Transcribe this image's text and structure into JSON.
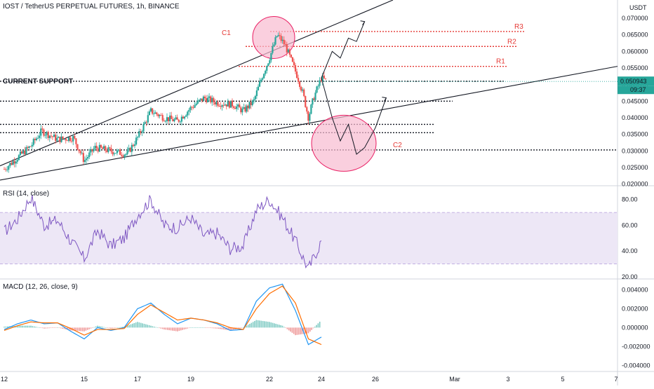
{
  "header": {
    "symbol": "IOST / TetherUS PERPETUAL FUTURES, 1h, BINANCE"
  },
  "colors": {
    "up": "#26a69a",
    "down": "#ef5350",
    "annotation_red": "#e53935",
    "rsi_line": "#7e57c2",
    "rsi_band": "#ede7f6",
    "macd_line": "#2196f3",
    "signal_line": "#ff6d00",
    "circle_fill": "#f8bbd0",
    "circle_stroke": "#e91e63"
  },
  "chart_data": [
    {
      "type": "candlestick",
      "panel": "price",
      "unit": "USDT",
      "ylim": [
        0.0195,
        0.0755
      ],
      "y_ticks": [
        "0.070000",
        "0.065000",
        "0.060000",
        "0.055000",
        "0.050000",
        "0.045000",
        "0.040000",
        "0.035000",
        "0.030000",
        "0.025000",
        "0.020000"
      ],
      "x_ticks": [
        "12",
        "15",
        "17",
        "19",
        "22",
        "24",
        "26",
        "Mar",
        "3",
        "5",
        "7"
      ],
      "last_price": "0.050943",
      "countdown": "09:37",
      "price_path": [
        [
          "12",
          0.0245
        ],
        [
          "13",
          0.0315
        ],
        [
          "13.4",
          0.036
        ],
        [
          "14",
          0.0335
        ],
        [
          "14.6",
          0.034
        ],
        [
          "15",
          0.027
        ],
        [
          "15.4",
          0.031
        ],
        [
          "16",
          0.03
        ],
        [
          "16.6",
          0.029
        ],
        [
          "17",
          0.034
        ],
        [
          "17.5",
          0.042
        ],
        [
          "18",
          0.04
        ],
        [
          "18.5",
          0.039
        ],
        [
          "19",
          0.043
        ],
        [
          "19.5",
          0.046
        ],
        [
          "20",
          0.0445
        ],
        [
          "20.6",
          0.044
        ],
        [
          "21",
          0.042
        ],
        [
          "21.4",
          0.045
        ],
        [
          "21.7",
          0.052
        ],
        [
          "22",
          0.058
        ],
        [
          "22.3",
          0.065
        ],
        [
          "22.6",
          0.062
        ],
        [
          "22.9",
          0.056
        ],
        [
          "23.1",
          0.052
        ],
        [
          "23.3",
          0.047
        ],
        [
          "23.5",
          0.04
        ],
        [
          "23.7",
          0.046
        ],
        [
          "24",
          0.052
        ],
        [
          "24.2",
          0.051
        ]
      ],
      "levels": [
        {
          "label": "R3",
          "value": 0.066
        },
        {
          "label": "R2",
          "value": 0.0615
        },
        {
          "label": "R1",
          "value": 0.0555
        },
        {
          "label": "CURRENT SUPPORT",
          "value": 0.051
        },
        {
          "label": "",
          "value": 0.045
        },
        {
          "label": "",
          "value": 0.038
        },
        {
          "label": "",
          "value": 0.0355
        },
        {
          "label": "C2",
          "value": 0.0303
        }
      ],
      "annotations": [
        "C1",
        "C2",
        "R1",
        "R2",
        "R3",
        "CURRENT SUPPORT"
      ],
      "projection_up": [
        [
          "24",
          0.052
        ],
        [
          "24.4",
          0.06
        ],
        [
          "24.7",
          0.058
        ],
        [
          "25",
          0.064
        ],
        [
          "25.3",
          0.063
        ],
        [
          "25.6",
          0.069
        ]
      ],
      "projection_down": [
        [
          "24",
          0.052
        ],
        [
          "24.4",
          0.04
        ],
        [
          "24.7",
          0.033
        ],
        [
          "25",
          0.038
        ],
        [
          "25.3",
          0.029
        ],
        [
          "25.6",
          0.031
        ],
        [
          "26",
          0.037
        ],
        [
          "26.4",
          0.046
        ]
      ]
    },
    {
      "type": "line",
      "panel": "rsi",
      "title": "RSI (14, close)",
      "ylim": [
        20,
        88
      ],
      "y_ticks": [
        "80.00",
        "60.00",
        "40.00",
        "20.00"
      ],
      "band": [
        30,
        70
      ],
      "x": [
        "12",
        "12.5",
        "13",
        "13.5",
        "14",
        "14.5",
        "15",
        "15.5",
        "16",
        "16.5",
        "17",
        "17.5",
        "18",
        "18.5",
        "19",
        "19.5",
        "20",
        "20.5",
        "21",
        "21.5",
        "22",
        "22.5",
        "23",
        "23.5",
        "24"
      ],
      "values": [
        55,
        65,
        82,
        60,
        64,
        48,
        34,
        56,
        44,
        50,
        68,
        80,
        60,
        58,
        66,
        52,
        54,
        42,
        44,
        72,
        80,
        66,
        48,
        26,
        48
      ]
    },
    {
      "type": "line",
      "panel": "macd",
      "title": "MACD (12, 26, close, 9)",
      "ylim": [
        -0.0045,
        0.005
      ],
      "y_ticks": [
        "0.004000",
        "0.002000",
        "0.000000",
        "-0.002000",
        "-0.004000"
      ],
      "x": [
        "12",
        "12.5",
        "13",
        "13.5",
        "14",
        "14.5",
        "15",
        "15.5",
        "16",
        "16.5",
        "17",
        "17.5",
        "18",
        "18.5",
        "19",
        "19.5",
        "20",
        "20.5",
        "21",
        "21.5",
        "22",
        "22.5",
        "23",
        "23.5",
        "24"
      ],
      "series": [
        {
          "name": "MACD",
          "values": [
            -0.0002,
            0.0004,
            0.0008,
            0.0004,
            0.0005,
            -0.0004,
            -0.0012,
            0.0,
            -0.0003,
            0.0,
            0.002,
            0.0026,
            0.0014,
            0.0004,
            0.001,
            0.0008,
            0.0004,
            -0.0003,
            -0.0002,
            0.0028,
            0.0042,
            0.0046,
            0.0018,
            -0.0018,
            -0.001
          ]
        },
        {
          "name": "Signal",
          "values": [
            -0.0003,
            0.0002,
            0.0006,
            0.0005,
            0.0005,
            -0.0001,
            -0.0008,
            -0.0002,
            -0.0002,
            -0.0001,
            0.0014,
            0.0024,
            0.0016,
            0.0008,
            0.001,
            0.0008,
            0.0005,
            0.0,
            -0.0002,
            0.002,
            0.0036,
            0.0044,
            0.0026,
            -0.0012,
            -0.0018
          ]
        }
      ]
    }
  ]
}
